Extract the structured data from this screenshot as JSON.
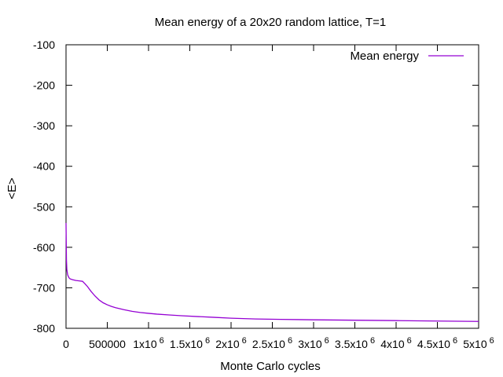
{
  "chart_data": {
    "type": "line",
    "title": "Mean energy of a 20x20 random lattice, T=1",
    "xlabel": "Monte Carlo cycles",
    "ylabel": "<E>",
    "xlim": [
      0,
      5000000
    ],
    "ylim": [
      -800,
      -100
    ],
    "grid": false,
    "legend_position": "top-right",
    "x_ticks": [
      {
        "value": 0,
        "base": "0",
        "exp": ""
      },
      {
        "value": 500000,
        "base": "500000",
        "exp": ""
      },
      {
        "value": 1000000,
        "base": "1x10",
        "exp": "6"
      },
      {
        "value": 1500000,
        "base": "1.5x10",
        "exp": "6"
      },
      {
        "value": 2000000,
        "base": "2x10",
        "exp": "6"
      },
      {
        "value": 2500000,
        "base": "2.5x10",
        "exp": "6"
      },
      {
        "value": 3000000,
        "base": "3x10",
        "exp": "6"
      },
      {
        "value": 3500000,
        "base": "3.5x10",
        "exp": "6"
      },
      {
        "value": 4000000,
        "base": "4x10",
        "exp": "6"
      },
      {
        "value": 4500000,
        "base": "4.5x10",
        "exp": "6"
      },
      {
        "value": 5000000,
        "base": "5x10",
        "exp": "6"
      }
    ],
    "y_ticks": [
      -100,
      -200,
      -300,
      -400,
      -500,
      -600,
      -700,
      -800
    ],
    "series": [
      {
        "name": "Mean energy",
        "color": "#9400d3",
        "x": [
          0,
          5000,
          10000,
          20000,
          35000,
          50000,
          80000,
          120000,
          160000,
          200000,
          230000,
          260000,
          300000,
          350000,
          400000,
          450000,
          500000,
          550000,
          600000,
          700000,
          800000,
          900000,
          1000000,
          1100000,
          1250000,
          1400000,
          1600000,
          1800000,
          2000000,
          2300000,
          2600000,
          3000000,
          3500000,
          4000000,
          4500000,
          5000000
        ],
        "y": [
          -540,
          -630,
          -655,
          -668,
          -675,
          -678,
          -680,
          -682,
          -683,
          -684,
          -690,
          -697,
          -708,
          -720,
          -730,
          -737,
          -742,
          -746,
          -749,
          -754,
          -758,
          -761,
          -763,
          -765,
          -767,
          -769,
          -771,
          -773,
          -775,
          -777,
          -778,
          -779,
          -780,
          -781,
          -782,
          -783
        ]
      }
    ]
  }
}
